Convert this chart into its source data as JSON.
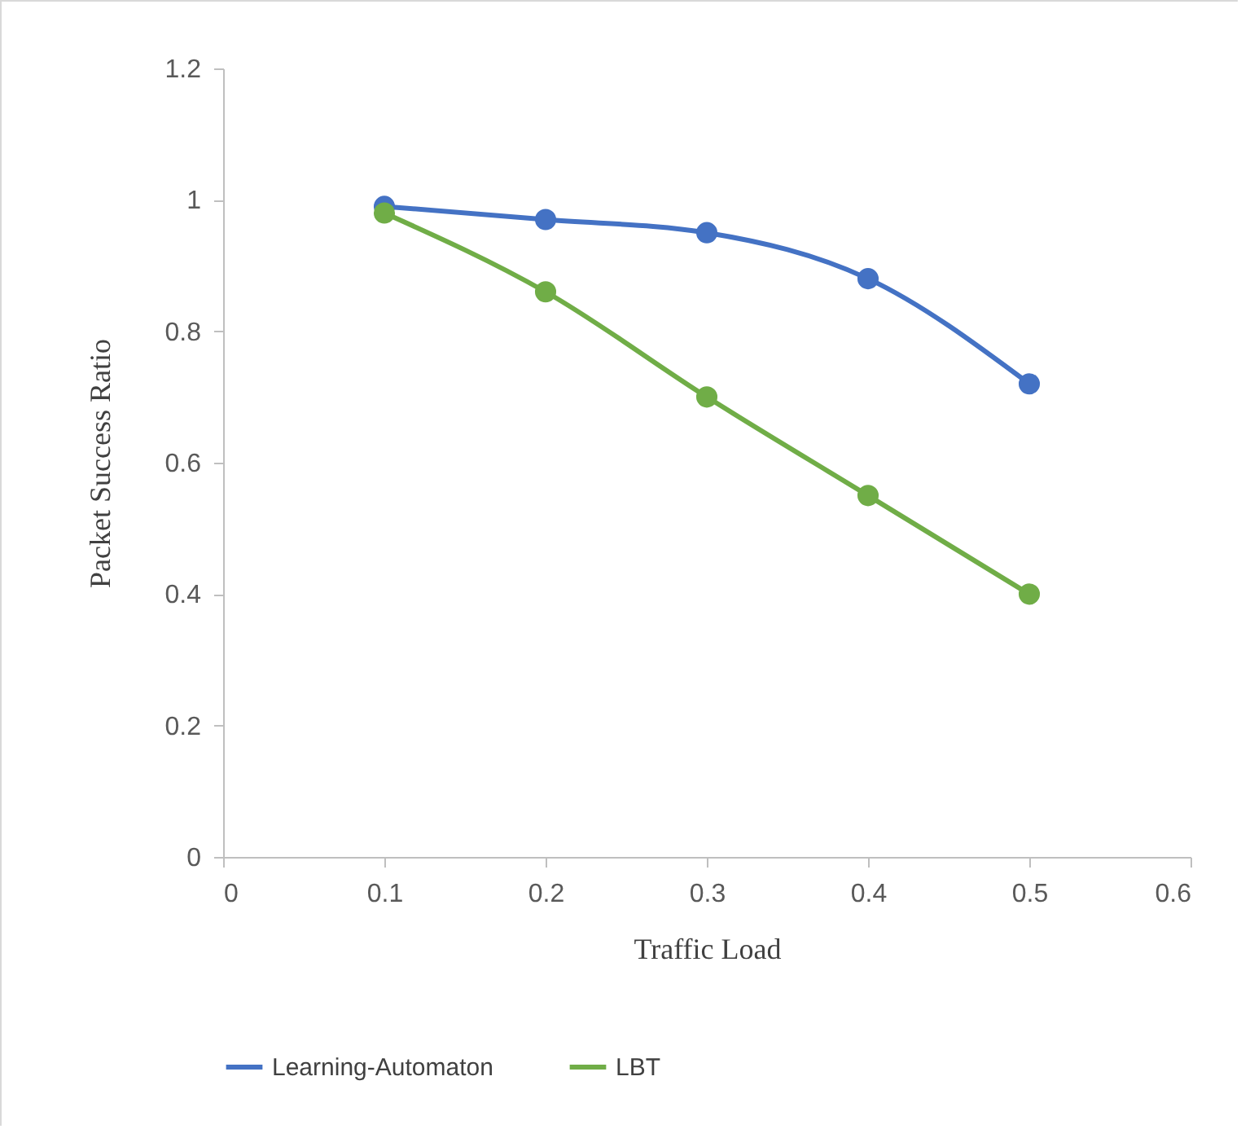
{
  "chart_data": {
    "type": "line",
    "xlabel": "Traffic Load",
    "ylabel": "Packet Success Ratio",
    "x": [
      0.1,
      0.2,
      0.3,
      0.4,
      0.5
    ],
    "series": [
      {
        "name": "Learning-Automaton",
        "color": "#4472c4",
        "values": [
          0.99,
          0.97,
          0.95,
          0.88,
          0.72
        ]
      },
      {
        "name": "LBT",
        "color": "#70ad47",
        "values": [
          0.98,
          0.86,
          0.7,
          0.55,
          0.4
        ]
      }
    ],
    "xlim": [
      0,
      0.6
    ],
    "xticks": [
      0,
      0.1,
      0.2,
      0.3,
      0.4,
      0.5,
      0.6
    ],
    "ylim": [
      0,
      1.2
    ],
    "yticks": [
      0,
      0.2,
      0.4,
      0.6,
      0.8,
      1,
      1.2
    ],
    "grid": false,
    "legend": "bottom",
    "marker": "circle",
    "line_style": "solid"
  }
}
